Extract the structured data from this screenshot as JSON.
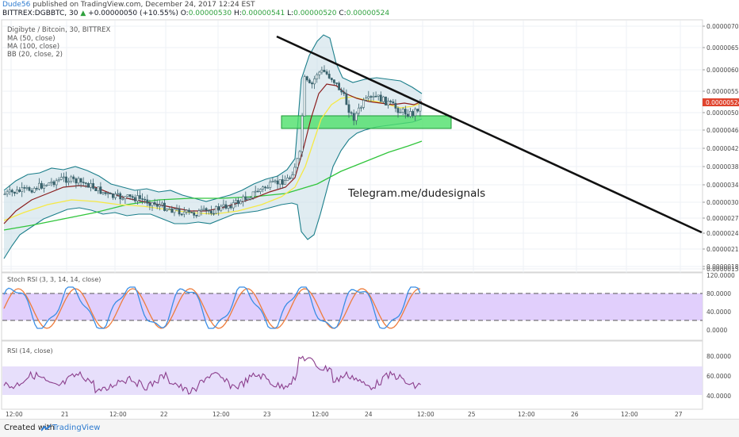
{
  "header": {
    "author": "Dude56",
    "published_text": "published on TradingView.com, December 24, 2017 12:24 EST",
    "symbol": "BITTREX:DGBBTC, 30",
    "change": "+0.00000050 (+10.55%)",
    "o_label": "O:",
    "o_value": "0.00000530",
    "h_label": "H:",
    "h_value": "0.00000541",
    "l_label": "L:",
    "l_value": "0.00000520",
    "c_label": "C:",
    "c_value": "0.00000524"
  },
  "legend": {
    "title": "Digibyte / Bitcoin, 30, BITTREX",
    "ma50": "MA (50, close)",
    "ma100": "MA (100, close)",
    "bb": "BB (20, close, 2)"
  },
  "annotation": "Telegram.me/dudesignals",
  "price_axis": {
    "ticks": [
      "0.00000700",
      "0.00000650",
      "0.00000600",
      "0.00000550",
      "0.00000500",
      "0.00000460",
      "0.00000420",
      "0.00000380",
      "0.00000340",
      "0.00000300",
      "0.00000270",
      "0.00000240",
      "0.00000210",
      "0.00000180",
      "0.00000150"
    ],
    "current_price": "0.00000524"
  },
  "stoch_panel": {
    "title": "Stoch RSI (3, 3, 14, 14, close)",
    "ticks": [
      "120.0000",
      "80.0000",
      "40.0000",
      "0.0000"
    ]
  },
  "rsi_panel": {
    "title": "RSI (14, close)",
    "ticks": [
      "80.0000",
      "60.0000",
      "40.0000"
    ]
  },
  "time_axis": [
    "12:00",
    "21",
    "12:00",
    "22",
    "12:00",
    "23",
    "12:00",
    "24",
    "12:00",
    "25",
    "12:00",
    "26",
    "12:00",
    "27"
  ],
  "colors": {
    "candle": "#38616b",
    "bb_band": "#1b7e8a",
    "bb_fill": "#c6dde6",
    "ma50": "#8a1d1d",
    "ma20": "#f6e946",
    "ma100": "#31c53c",
    "support_box": "#4de06a",
    "price_label": "#e0442e",
    "stoch_fill": "#dcc7fb",
    "rsi_fill": "#e4dcfb",
    "rsi_line": "#8b3e8c",
    "stoch_k": "#3a8ee5",
    "stoch_d": "#ee7c3b"
  },
  "footer": {
    "created_with": "Created with",
    "brand": "TradingView"
  },
  "chart_data": {
    "type": "line",
    "y_axis_range": [
      1.4e-06,
      7.1e-06
    ],
    "series": [
      {
        "name": "Digibyte / Bitcoin",
        "x": [
          "12:00",
          "21",
          "12:00",
          "22",
          "12:00",
          "23",
          "12:00",
          "24",
          "12:00"
        ],
        "values": [
          3.2e-06,
          3.4e-06,
          3.2e-06,
          2.9e-06,
          2.8e-06,
          3.3e-06,
          5.5e-06,
          5e-06,
          5.24e-06
        ]
      }
    ]
  }
}
